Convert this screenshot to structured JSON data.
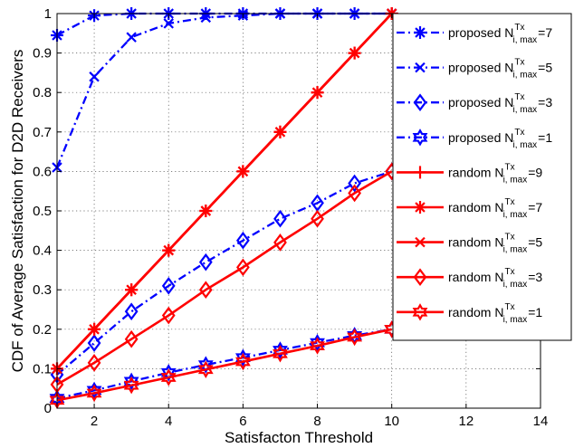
{
  "chart_data": {
    "type": "line",
    "xlabel": "Satisfacton Threshold",
    "ylabel": "CDF of Average Satisfaction for D2D Receivers",
    "xlim": [
      1,
      14
    ],
    "ylim": [
      0,
      1
    ],
    "xticks": [
      2,
      4,
      6,
      8,
      10,
      12,
      14
    ],
    "yticks": [
      0,
      0.1,
      0.2,
      0.3,
      0.4,
      0.5,
      0.6,
      0.7,
      0.8,
      0.9,
      1
    ],
    "grid": true,
    "legend_position": "top-right",
    "x": [
      1,
      2,
      3,
      4,
      5,
      6,
      7,
      8,
      9,
      10
    ],
    "series": [
      {
        "name": "proposed N_{i, max}^{Tx}=7",
        "legend_main": "proposed N",
        "legend_sup": "Tx",
        "legend_sub": "i, max",
        "legend_tail": "=7",
        "color": "#0000ff",
        "dash": "dashdot",
        "marker": "asterisk",
        "values": [
          0.945,
          0.995,
          1.0,
          1.0,
          1.0,
          1.0,
          1.0,
          1.0,
          1.0,
          1.0
        ]
      },
      {
        "name": "proposed N_{i, max}^{Tx}=5",
        "legend_main": "proposed N",
        "legend_sup": "Tx",
        "legend_sub": "i, max",
        "legend_tail": "=5",
        "color": "#0000ff",
        "dash": "dashdot",
        "marker": "x",
        "values": [
          0.61,
          0.84,
          0.94,
          0.975,
          0.99,
          0.995,
          1.0,
          1.0,
          1.0,
          1.0
        ]
      },
      {
        "name": "proposed N_{i, max}^{Tx}=3",
        "legend_main": "proposed N",
        "legend_sup": "Tx",
        "legend_sub": "i, max",
        "legend_tail": "=3",
        "color": "#0000ff",
        "dash": "dashdot",
        "marker": "diamond",
        "values": [
          0.085,
          0.165,
          0.245,
          0.31,
          0.37,
          0.425,
          0.48,
          0.52,
          0.57,
          0.6
        ]
      },
      {
        "name": "proposed N_{i, max}^{Tx}=1",
        "legend_main": "proposed N",
        "legend_sup": "Tx",
        "legend_sub": "i, max",
        "legend_tail": "=1",
        "color": "#0000ff",
        "dash": "dashdot",
        "marker": "hexagram",
        "values": [
          0.025,
          0.045,
          0.068,
          0.09,
          0.11,
          0.128,
          0.147,
          0.166,
          0.184,
          0.2
        ]
      },
      {
        "name": "random N_{i, max}^{Tx}=9",
        "legend_main": "random N",
        "legend_sup": "Tx",
        "legend_sub": "i, max",
        "legend_tail": "=9",
        "color": "#ff0000",
        "dash": "solid",
        "marker": "plus",
        "values": [
          0.1,
          0.2,
          0.3,
          0.4,
          0.5,
          0.6,
          0.7,
          0.8,
          0.9,
          1.0
        ]
      },
      {
        "name": "random N_{i, max}^{Tx}=7",
        "legend_main": "random N",
        "legend_sup": "Tx",
        "legend_sub": "i, max",
        "legend_tail": "=7",
        "color": "#ff0000",
        "dash": "solid",
        "marker": "asterisk",
        "values": [
          0.1,
          0.2,
          0.3,
          0.4,
          0.5,
          0.6,
          0.7,
          0.8,
          0.9,
          1.0
        ]
      },
      {
        "name": "random N_{i, max}^{Tx}=5",
        "legend_main": "random N",
        "legend_sup": "Tx",
        "legend_sub": "i, max",
        "legend_tail": "=5",
        "color": "#ff0000",
        "dash": "solid",
        "marker": "x",
        "values": [
          0.1,
          0.2,
          0.3,
          0.4,
          0.5,
          0.6,
          0.7,
          0.8,
          0.9,
          1.0
        ]
      },
      {
        "name": "random N_{i, max}^{Tx}=3",
        "legend_main": "random N",
        "legend_sup": "Tx",
        "legend_sub": "i, max",
        "legend_tail": "=3",
        "color": "#ff0000",
        "dash": "solid",
        "marker": "diamond",
        "values": [
          0.06,
          0.115,
          0.175,
          0.235,
          0.3,
          0.357,
          0.42,
          0.48,
          0.545,
          0.6
        ]
      },
      {
        "name": "random N_{i, max}^{Tx}=1",
        "legend_main": "random N",
        "legend_sup": "Tx",
        "legend_sub": "i, max",
        "legend_tail": "=1",
        "color": "#ff0000",
        "dash": "solid",
        "marker": "hexagram",
        "values": [
          0.02,
          0.038,
          0.058,
          0.078,
          0.098,
          0.118,
          0.138,
          0.158,
          0.18,
          0.2
        ]
      }
    ]
  }
}
